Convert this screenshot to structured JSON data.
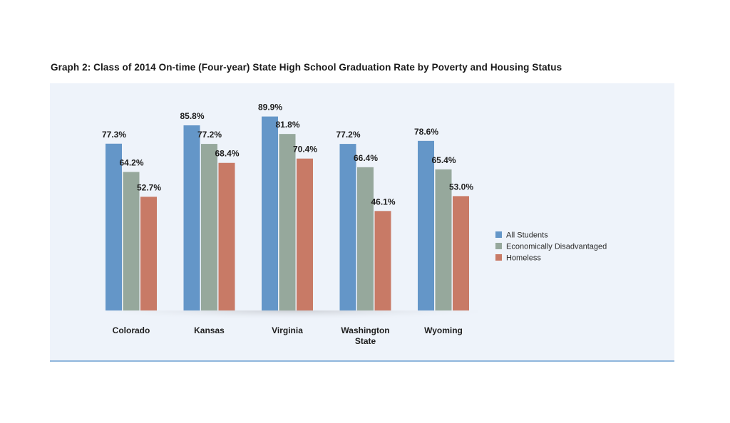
{
  "chart_data": {
    "type": "bar",
    "title": "Graph 2: Class of 2014 On-time (Four-year) State High School Graduation Rate by Poverty and Housing Status",
    "xlabel": "",
    "ylabel": "",
    "ylim": [
      0,
      100
    ],
    "grid": false,
    "legend_position": "right",
    "categories": [
      [
        "Colorado"
      ],
      [
        "Kansas"
      ],
      [
        "Virginia"
      ],
      [
        "Washington",
        "State"
      ],
      [
        "Wyoming"
      ]
    ],
    "series": [
      {
        "name": "All Students",
        "color": "#6496c8",
        "values": [
          77.3,
          85.8,
          89.9,
          77.2,
          78.6
        ],
        "labels": [
          "77.3%",
          "85.8%",
          "89.9%",
          "77.2%",
          "78.6%"
        ]
      },
      {
        "name": "Economically Disadvantaged",
        "color": "#96a89c",
        "values": [
          64.2,
          77.2,
          81.8,
          66.4,
          65.4
        ],
        "labels": [
          "64.2%",
          "77.2%",
          "81.8%",
          "66.4%",
          "65.4%"
        ]
      },
      {
        "name": "Homeless",
        "color": "#c87a66",
        "values": [
          52.7,
          68.4,
          70.4,
          46.1,
          53.0
        ],
        "labels": [
          "52.7%",
          "68.4%",
          "70.4%",
          "46.1%",
          "53.0%"
        ]
      }
    ]
  }
}
